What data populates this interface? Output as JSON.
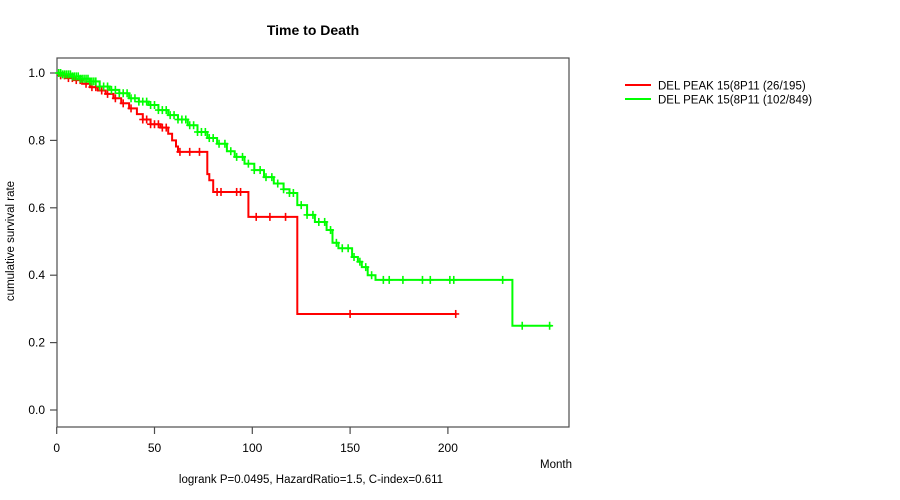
{
  "chart_data": {
    "type": "line",
    "subtype": "kaplan-meier-step",
    "title": "Time to Death",
    "xlabel": "Month",
    "ylabel": "cumulative survival rate",
    "annotation": "logrank P=0.0495, HazardRatio=1.5, C-index=0.611",
    "x_ticks": [
      0,
      50,
      100,
      150,
      200
    ],
    "y_ticks": [
      "0.0",
      "0.2",
      "0.4",
      "0.6",
      "0.8",
      "1.0"
    ],
    "xlim": [
      0,
      262
    ],
    "ylim": [
      0.0,
      1.0
    ],
    "grid": false,
    "legend_position": "right-outside",
    "axis_color": "#4d4d4d",
    "series": [
      {
        "name": "group-red",
        "label": "DEL PEAK 15(8P11 (26/195)",
        "color": "#ff0000",
        "steps": [
          [
            0,
            1.0
          ],
          [
            2,
            0.993
          ],
          [
            5,
            0.985
          ],
          [
            9,
            0.979
          ],
          [
            13,
            0.968
          ],
          [
            17,
            0.958
          ],
          [
            21,
            0.948
          ],
          [
            25,
            0.938
          ],
          [
            29,
            0.925
          ],
          [
            33,
            0.91
          ],
          [
            37,
            0.895
          ],
          [
            41,
            0.878
          ],
          [
            44,
            0.862
          ],
          [
            48,
            0.848
          ],
          [
            53,
            0.838
          ],
          [
            57,
            0.82
          ],
          [
            59,
            0.8
          ],
          [
            61,
            0.782
          ],
          [
            62,
            0.766
          ],
          [
            77,
            0.7
          ],
          [
            78,
            0.682
          ],
          [
            80,
            0.647
          ],
          [
            98,
            0.573
          ],
          [
            123,
            0.285
          ],
          [
            204.5,
            0.285
          ]
        ],
        "censors": [
          2,
          4,
          6,
          8,
          10,
          12,
          15,
          18,
          20,
          23,
          26,
          30,
          34,
          38,
          44,
          46,
          48,
          50,
          52,
          54,
          56,
          63,
          68,
          73,
          82,
          84,
          92,
          94,
          102,
          109,
          117,
          150,
          204
        ]
      },
      {
        "name": "group-green",
        "label": "DEL PEAK 15(8P11 (102/849)",
        "color": "#00ff00",
        "steps": [
          [
            0,
            1.0
          ],
          [
            3,
            0.996
          ],
          [
            8,
            0.99
          ],
          [
            12,
            0.983
          ],
          [
            17,
            0.975
          ],
          [
            22,
            0.96
          ],
          [
            27,
            0.95
          ],
          [
            32,
            0.94
          ],
          [
            37,
            0.925
          ],
          [
            42,
            0.915
          ],
          [
            47,
            0.905
          ],
          [
            52,
            0.89
          ],
          [
            57,
            0.875
          ],
          [
            62,
            0.862
          ],
          [
            67,
            0.845
          ],
          [
            72,
            0.825
          ],
          [
            77,
            0.807
          ],
          [
            82,
            0.79
          ],
          [
            87,
            0.768
          ],
          [
            91,
            0.751
          ],
          [
            96,
            0.731
          ],
          [
            101,
            0.712
          ],
          [
            106,
            0.691
          ],
          [
            111,
            0.672
          ],
          [
            116,
            0.655
          ],
          [
            119,
            0.644
          ],
          [
            123,
            0.608
          ],
          [
            128,
            0.579
          ],
          [
            132,
            0.558
          ],
          [
            138,
            0.534
          ],
          [
            141,
            0.496
          ],
          [
            144,
            0.48
          ],
          [
            151,
            0.454
          ],
          [
            154,
            0.44
          ],
          [
            156,
            0.424
          ],
          [
            159,
            0.4
          ],
          [
            163,
            0.386
          ],
          [
            233,
            0.25
          ],
          [
            253,
            0.25
          ]
        ],
        "censors": [
          1,
          2,
          3,
          4,
          5,
          6,
          7,
          8,
          9,
          10,
          11,
          12,
          13,
          14,
          15,
          16,
          17,
          18,
          19,
          20,
          22,
          24,
          26,
          28,
          30,
          32,
          34,
          36,
          38,
          40,
          42,
          44,
          46,
          48,
          50,
          52,
          54,
          56,
          58,
          60,
          62,
          64,
          66,
          68,
          70,
          72,
          74,
          76,
          78,
          80,
          83,
          86,
          89,
          92,
          95,
          98,
          101,
          104,
          107,
          110,
          113,
          116,
          119,
          121,
          125,
          128,
          131,
          134,
          137,
          140,
          143,
          146,
          149,
          152,
          155,
          158,
          161,
          167,
          170,
          177,
          187,
          191,
          201,
          203,
          228,
          238,
          252
        ]
      }
    ]
  }
}
